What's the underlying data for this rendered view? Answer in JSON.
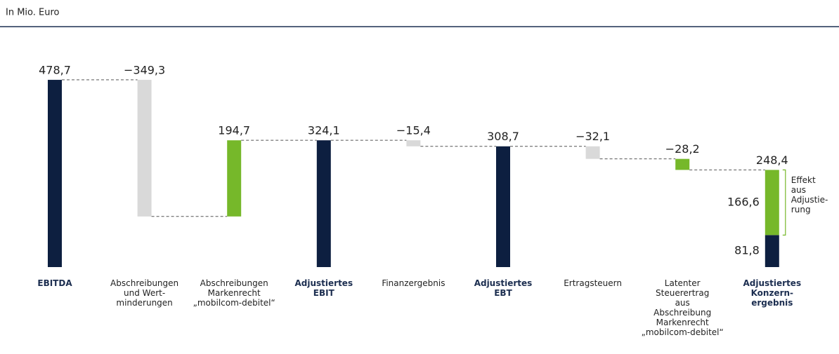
{
  "chart_data": {
    "type": "waterfall",
    "subtitle": "In Mio. Euro",
    "categories": [
      "EBITDA",
      "Abschreibungen\nund Wert-\nminderungen",
      "Abschreibungen\nMarkenrecht\n„mobilcom-debitel“",
      "Adjustiertes\nEBIT",
      "Finanzergebnis",
      "Adjustiertes\nEBT",
      "Ertragsteuern",
      "Latenter\nSteuerertrag\naus\nAbschreibung\nMarkenrecht\n„mobilcom-debitel“",
      "Adjustiertes\nKonzern-\nergebnis"
    ],
    "values": [
      478.7,
      -349.3,
      194.7,
      324.1,
      -15.4,
      308.7,
      -32.1,
      -28.2,
      248.4
    ],
    "value_labels": [
      "478,7",
      "−349,3",
      "194,7",
      "324,1",
      "−15,4",
      "308,7",
      "−32,1",
      "−28,2",
      "248,4"
    ],
    "bar_kinds": [
      "total",
      "delta",
      "delta",
      "total",
      "delta",
      "total",
      "delta",
      "delta",
      "stacked"
    ],
    "colors": [
      "#0d1f40",
      "#d9d9d9",
      "#76b82a",
      "#0d1f40",
      "#d9d9d9",
      "#0d1f40",
      "#d9d9d9",
      "#76b82a",
      "#0d1f40"
    ],
    "final_stack": {
      "values": [
        81.8,
        166.6
      ],
      "value_labels": [
        "81,8",
        "166,6"
      ],
      "colors": [
        "#0d1f40",
        "#76b82a"
      ]
    },
    "annotation": "Effekt\naus\nAdjustie-\nrung",
    "ylim": [
      0,
      500
    ]
  }
}
